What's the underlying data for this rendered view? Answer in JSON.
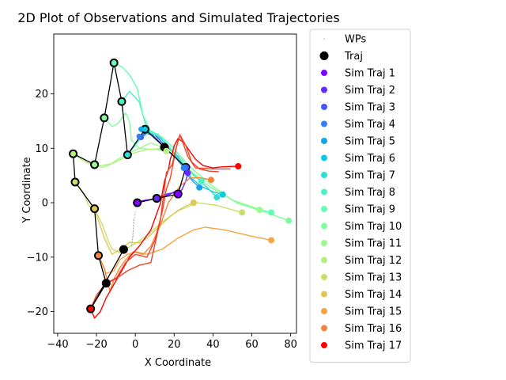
{
  "chart_data": {
    "type": "line",
    "title": "2D Plot of Observations and Simulated Trajectories",
    "xlabel": "X Coordinate",
    "ylabel": "Y Coordinate",
    "xlim": [
      -42,
      83
    ],
    "ylim": [
      -24,
      31
    ],
    "xticks": [
      -40,
      -20,
      0,
      20,
      40,
      60,
      80
    ],
    "yticks": [
      -20,
      -10,
      0,
      10,
      20
    ],
    "grid": false,
    "legend_position": "outside-right",
    "observations": {
      "name": "Traj",
      "color": "#000000",
      "points": [
        [
          1,
          0
        ],
        [
          11,
          0.8
        ],
        [
          22,
          1.6
        ],
        [
          26,
          6.5
        ],
        [
          15,
          10.2
        ],
        [
          5,
          13.5
        ],
        [
          -4,
          8.8
        ],
        [
          -7,
          18.6
        ],
        [
          -11,
          25.7
        ],
        [
          -16,
          15.6
        ],
        [
          -21,
          7
        ],
        [
          -32,
          9
        ],
        [
          -31,
          3.8
        ],
        [
          -21,
          -1.1
        ],
        [
          -19,
          -9.7
        ],
        [
          -15,
          -14.8
        ],
        [
          -23,
          -19.5
        ],
        [
          -6,
          -8.6
        ]
      ]
    },
    "waypoints": {
      "name": "WPs",
      "color": "#aaaaaa",
      "points": [
        [
          -1,
          -3
        ],
        [
          -1,
          -6
        ],
        [
          -2,
          -8
        ],
        [
          0,
          -1.5
        ]
      ]
    },
    "series": [
      {
        "name": "Sim Traj 1",
        "color": "#8000ff",
        "points": [
          [
            1,
            0
          ],
          [
            4,
            0.4
          ],
          [
            8,
            0.6
          ],
          [
            11,
            0.8
          ],
          [
            15,
            1.2
          ],
          [
            18,
            1.6
          ],
          [
            20,
            2.0
          ],
          [
            22,
            1.6
          ]
        ]
      },
      {
        "name": "Sim Traj 2",
        "color": "#6629fe",
        "points": [
          [
            11,
            0.8
          ],
          [
            15,
            1.5
          ],
          [
            19,
            1.8
          ],
          [
            22,
            1.6
          ],
          [
            24,
            2.4
          ],
          [
            26,
            4.0
          ],
          [
            27,
            5.5
          ]
        ]
      },
      {
        "name": "Sim Traj 3",
        "color": "#4856fb",
        "points": [
          [
            3,
            12
          ],
          [
            6,
            13
          ],
          [
            10,
            12.5
          ],
          [
            14,
            11
          ],
          [
            18,
            9.8
          ],
          [
            22,
            8.5
          ],
          [
            26,
            6.5
          ]
        ]
      },
      {
        "name": "Sim Traj 4",
        "color": "#2d80f5",
        "points": [
          [
            2,
            12.2
          ],
          [
            5,
            12.8
          ],
          [
            9,
            12.4
          ],
          [
            13,
            11.0
          ],
          [
            17,
            9.5
          ],
          [
            21,
            8.2
          ],
          [
            25,
            6.4
          ]
        ]
      },
      {
        "name": "Sim Traj 5",
        "color": "#12a4ed",
        "points": [
          [
            3,
            13.5
          ],
          [
            7,
            13.2
          ],
          [
            11,
            12.4
          ],
          [
            15,
            11.2
          ],
          [
            19,
            9.5
          ],
          [
            23,
            7.5
          ],
          [
            27,
            5.0
          ],
          [
            30,
            3.8
          ],
          [
            33,
            2.8
          ]
        ]
      },
      {
        "name": "Sim Traj 6",
        "color": "#12c8e1",
        "points": [
          [
            5,
            13.5
          ],
          [
            9,
            13.0
          ],
          [
            14,
            11.5
          ],
          [
            19,
            9.5
          ],
          [
            24,
            7.0
          ],
          [
            29,
            4.5
          ],
          [
            34,
            3.0
          ],
          [
            40,
            2.0
          ],
          [
            45,
            1.5
          ]
        ]
      },
      {
        "name": "Sim Traj 7",
        "color": "#2ddfd6",
        "points": [
          [
            -4,
            8.8
          ],
          [
            2,
            11.5
          ],
          [
            7,
            13.0
          ],
          [
            13,
            12.0
          ],
          [
            19,
            9.5
          ],
          [
            25,
            7.0
          ],
          [
            31,
            4.8
          ],
          [
            37,
            2.8
          ],
          [
            42,
            1.0
          ]
        ]
      },
      {
        "name": "Sim Traj 8",
        "color": "#48f2c6",
        "points": [
          [
            -7,
            18.6
          ],
          [
            -3,
            20.5
          ],
          [
            2,
            18.5
          ],
          [
            6,
            13.5
          ],
          [
            12,
            12.5
          ],
          [
            18,
            10
          ],
          [
            24,
            7.5
          ],
          [
            30,
            5
          ],
          [
            34,
            4
          ]
        ]
      },
      {
        "name": "Sim Traj 9",
        "color": "#66fcb5",
        "points": [
          [
            -11,
            25.7
          ],
          [
            -7,
            25.0
          ],
          [
            -3,
            23.5
          ],
          [
            1,
            21
          ],
          [
            4,
            16
          ],
          [
            8,
            13
          ],
          [
            14,
            12
          ],
          [
            20,
            10
          ],
          [
            28,
            6
          ],
          [
            38,
            3
          ],
          [
            50,
            0.5
          ],
          [
            62,
            -1
          ],
          [
            70,
            -1.8
          ]
        ]
      },
      {
        "name": "Sim Traj 10",
        "color": "#80fe9e",
        "points": [
          [
            -16,
            15.6
          ],
          [
            -12,
            14
          ],
          [
            -9,
            14.5
          ],
          [
            -5,
            16.5
          ],
          [
            -3,
            15
          ],
          [
            -2,
            11.5
          ],
          [
            2,
            10.0
          ],
          [
            8,
            9.8
          ],
          [
            15,
            10.0
          ],
          [
            22,
            9.0
          ],
          [
            30,
            6
          ],
          [
            40,
            3
          ],
          [
            52,
            0
          ],
          [
            65,
            -1.5
          ],
          [
            79,
            -3.3
          ]
        ]
      },
      {
        "name": "Sim Traj 11",
        "color": "#99fc8c",
        "points": [
          [
            -21,
            7
          ],
          [
            -17,
            6.5
          ],
          [
            -13,
            7
          ],
          [
            -9,
            8
          ],
          [
            -4,
            9
          ],
          [
            2,
            10
          ],
          [
            8,
            11
          ],
          [
            14,
            10.2
          ],
          [
            20,
            8.5
          ],
          [
            28,
            6
          ],
          [
            38,
            3
          ],
          [
            50,
            0.5
          ],
          [
            64,
            -1.3
          ]
        ]
      },
      {
        "name": "Sim Traj 12",
        "color": "#b3f27a",
        "points": [
          [
            -32,
            9
          ],
          [
            -28,
            8
          ],
          [
            -24,
            7.2
          ],
          [
            -18,
            6.8
          ],
          [
            -12,
            7.2
          ],
          [
            -6,
            8.2
          ],
          [
            0,
            9.2
          ],
          [
            6,
            9.8
          ],
          [
            11,
            9.8
          ],
          [
            16,
            9.5
          ]
        ]
      },
      {
        "name": "Sim Traj 13",
        "color": "#c8df69",
        "points": [
          [
            -31,
            3.8
          ],
          [
            -27,
            2
          ],
          [
            -24,
            -0.5
          ],
          [
            -21,
            -1.1
          ],
          [
            -17,
            -4
          ],
          [
            -14,
            -7
          ],
          [
            -12,
            -8.5
          ],
          [
            -8,
            -9.2
          ],
          [
            -5,
            -8.5
          ],
          [
            0,
            -7.5
          ],
          [
            6,
            -6
          ],
          [
            14,
            -3.5
          ],
          [
            22,
            -1.5
          ],
          [
            32,
            0
          ],
          [
            42,
            -0.5
          ],
          [
            55,
            -1.8
          ]
        ]
      },
      {
        "name": "Sim Traj 14",
        "color": "#ddc856",
        "points": [
          [
            -21,
            -1.1
          ],
          [
            -16,
            -6.5
          ],
          [
            -12,
            -9.5
          ],
          [
            -8,
            -8.6
          ],
          [
            -3,
            -7.3
          ],
          [
            2,
            -7.4
          ],
          [
            6,
            -6.5
          ],
          [
            12,
            -4.5
          ],
          [
            18,
            -2.5
          ],
          [
            22,
            -1.4
          ],
          [
            26,
            -0.6
          ],
          [
            30,
            0
          ]
        ]
      },
      {
        "name": "Sim Traj 15",
        "color": "#f6a445",
        "points": [
          [
            -19,
            -9.7
          ],
          [
            -15,
            -13
          ],
          [
            -11,
            -12.5
          ],
          [
            -8,
            -10.5
          ],
          [
            -4,
            -9.5
          ],
          [
            0,
            -9.0
          ],
          [
            6,
            -9.5
          ],
          [
            14,
            -8.5
          ],
          [
            22,
            -6.5
          ],
          [
            30,
            -5
          ],
          [
            36,
            -4.5
          ],
          [
            46,
            -5
          ],
          [
            58,
            -6
          ],
          [
            70,
            -6.9
          ]
        ]
      },
      {
        "name": "Sim Traj 16",
        "color": "#f6843b",
        "points": [
          [
            -19,
            -9.7
          ],
          [
            -16,
            -12
          ],
          [
            -14,
            -15
          ],
          [
            -13,
            -16.3
          ],
          [
            -11,
            -14
          ],
          [
            -8,
            -12
          ],
          [
            -5,
            -10.5
          ],
          [
            -1,
            -9
          ],
          [
            4,
            -9.5
          ],
          [
            8,
            -8
          ],
          [
            13,
            -4
          ],
          [
            17,
            0
          ],
          [
            20,
            1.5
          ],
          [
            23,
            3
          ],
          [
            28,
            4.5
          ],
          [
            33,
            4.6
          ],
          [
            39,
            4.2
          ]
        ]
      },
      {
        "name": "Sim Traj 17",
        "color": "#ff0000",
        "points": [
          [
            -23,
            -19.5
          ],
          [
            -21,
            -21.2
          ],
          [
            -18,
            -20
          ],
          [
            -15,
            -17.5
          ],
          [
            -11,
            -15
          ],
          [
            -7,
            -12.5
          ],
          [
            -3,
            -10
          ],
          [
            2,
            -8
          ],
          [
            8,
            -5
          ],
          [
            13,
            0
          ],
          [
            15,
            4
          ],
          [
            17,
            6
          ],
          [
            18,
            8
          ],
          [
            19,
            9
          ],
          [
            20,
            10.5
          ],
          [
            22,
            11.8
          ],
          [
            25,
            11
          ],
          [
            28,
            9.5
          ],
          [
            31,
            8
          ],
          [
            35,
            6.8
          ],
          [
            40,
            6.4
          ],
          [
            45,
            6.6
          ],
          [
            53,
            6.7
          ]
        ]
      }
    ],
    "extra_red_lines": [
      {
        "color": "#e8442c",
        "points": [
          [
            -15,
            -14.8
          ],
          [
            -8,
            -13.5
          ],
          [
            -4,
            -12.5
          ],
          [
            2,
            -11.5
          ],
          [
            8,
            -11
          ],
          [
            13,
            -3
          ],
          [
            16,
            5.5
          ],
          [
            19,
            7
          ],
          [
            21,
            10
          ],
          [
            23,
            12.5
          ],
          [
            26,
            10.5
          ],
          [
            29,
            7.5
          ],
          [
            33,
            6.2
          ],
          [
            38,
            5.8
          ],
          [
            43,
            5.7
          ]
        ]
      },
      {
        "color": "#f54226",
        "points": [
          [
            -23,
            -19.5
          ],
          [
            -20,
            -17
          ],
          [
            -15,
            -14.8
          ],
          [
            -10,
            -14
          ],
          [
            -5,
            -11
          ],
          [
            0,
            -9.5
          ],
          [
            6,
            -10
          ],
          [
            10,
            -7
          ],
          [
            14,
            -1.5
          ],
          [
            16,
            2.5
          ],
          [
            18,
            4.5
          ],
          [
            21,
            10
          ],
          [
            23,
            12.5
          ],
          [
            27,
            8.5
          ],
          [
            31,
            6.4
          ],
          [
            40,
            6.2
          ],
          [
            49,
            6.2
          ]
        ]
      }
    ]
  }
}
